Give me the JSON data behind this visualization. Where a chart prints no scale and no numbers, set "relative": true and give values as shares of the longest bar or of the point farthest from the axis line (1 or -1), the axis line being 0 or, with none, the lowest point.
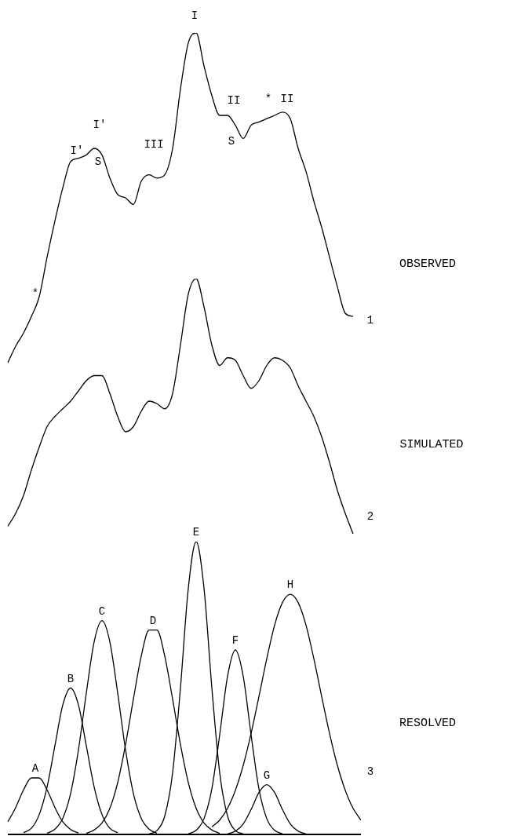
{
  "chart_data": [
    {
      "type": "line",
      "relative": true,
      "grid": false,
      "legend": false,
      "tick_labels": false,
      "marker": "none",
      "annotations": [
        "*",
        "I'",
        "I'",
        "S",
        "III",
        "I",
        "II",
        "S",
        "*",
        "II",
        "OBSERVED",
        "1"
      ],
      "categories": [
        null,
        null,
        null,
        null,
        null,
        null,
        null,
        null,
        null,
        null,
        null,
        null,
        null,
        null,
        null,
        null,
        null,
        null,
        null,
        null,
        null,
        null,
        null,
        null,
        null,
        null,
        null,
        null,
        null,
        null,
        null,
        null,
        null,
        null,
        null,
        null,
        null,
        null,
        null,
        null,
        null,
        null,
        null,
        null,
        null,
        null
      ],
      "series": [
        {
          "color": "#000000",
          "values": [
            0,
            0.05,
            0.09,
            0.14,
            0.2,
            0.32,
            0.43,
            0.53,
            0.61,
            0.62,
            0.63,
            0.65,
            0.63,
            0.56,
            0.51,
            0.5,
            0.48,
            0.55,
            0.57,
            0.56,
            0.57,
            0.65,
            0.83,
            0.97,
            1,
            0.9,
            0.81,
            0.75,
            0.75,
            0.72,
            0.68,
            0.72,
            0.73,
            0.74,
            0.75,
            0.76,
            0.74,
            0.65,
            0.58,
            0.49,
            0.41,
            0.32,
            0.23,
            0.15,
            0.14,
            null
          ]
        }
      ]
    },
    {
      "type": "line",
      "relative": true,
      "grid": false,
      "legend": false,
      "tick_labels": false,
      "marker": "none",
      "annotations": [
        "SIMULATED",
        "2"
      ],
      "categories": [
        null,
        null,
        null,
        null,
        null,
        null,
        null,
        null,
        null,
        null,
        null,
        null,
        null,
        null,
        null,
        null,
        null,
        null,
        null,
        null,
        null,
        null,
        null,
        null,
        null,
        null,
        null,
        null,
        null,
        null,
        null,
        null,
        null,
        null,
        null,
        null,
        null,
        null,
        null,
        null,
        null,
        null,
        null,
        null,
        null,
        null
      ],
      "series": [
        {
          "color": "#000000",
          "values": [
            0.03,
            0.08,
            0.15,
            0.25,
            0.34,
            0.42,
            0.46,
            0.49,
            0.52,
            0.56,
            0.6,
            0.62,
            0.62,
            0.55,
            0.46,
            0.4,
            0.42,
            0.48,
            0.52,
            0.51,
            0.49,
            0.55,
            0.74,
            0.94,
            1,
            0.89,
            0.74,
            0.66,
            0.69,
            0.68,
            0.62,
            0.57,
            0.6,
            0.66,
            0.69,
            0.68,
            0.65,
            0.58,
            0.52,
            0.46,
            0.38,
            0.28,
            0.17,
            0.08,
            0,
            null
          ]
        }
      ]
    },
    {
      "type": "line",
      "relative": true,
      "grid": false,
      "legend": false,
      "tick_labels": false,
      "marker": "none",
      "annotations": [
        "RESOLVED",
        "3"
      ],
      "ref_lines": [
        {
          "axis": "y",
          "value": 0,
          "label": null
        }
      ],
      "categories": [
        null,
        null,
        null,
        null,
        null,
        null,
        null,
        null,
        null,
        null,
        null,
        null,
        null,
        null,
        null,
        null,
        null,
        null,
        null,
        null,
        null,
        null,
        null,
        null,
        null,
        null,
        null,
        null,
        null,
        null,
        null,
        null,
        null,
        null,
        null,
        null,
        null,
        null,
        null,
        null,
        null,
        null,
        null,
        null,
        null,
        null
      ],
      "series": [
        {
          "name": "A",
          "color": "#000000",
          "values": [
            0.043,
            0.092,
            0.152,
            0.193,
            0.193,
            0.152,
            0.092,
            0.043,
            0.017,
            0.005,
            null,
            null,
            null,
            null,
            null,
            null,
            null,
            null,
            null,
            null,
            null,
            null,
            null,
            null,
            null,
            null,
            null,
            null,
            null,
            null,
            null,
            null,
            null,
            null,
            null,
            null,
            null,
            null,
            null,
            null,
            null,
            null,
            null,
            null,
            null,
            null
          ]
        },
        {
          "name": "B",
          "color": "#000000",
          "values": [
            null,
            null,
            0.006,
            0.021,
            0.068,
            0.162,
            0.303,
            0.442,
            0.5,
            0.442,
            0.303,
            0.162,
            0.068,
            0.021,
            0.006,
            null,
            null,
            null,
            null,
            null,
            null,
            null,
            null,
            null,
            null,
            null,
            null,
            null,
            null,
            null,
            null,
            null,
            null,
            null,
            null,
            null,
            null,
            null,
            null,
            null,
            null,
            null,
            null,
            null,
            null,
            null
          ]
        },
        {
          "name": "C",
          "color": "#000000",
          "values": [
            null,
            null,
            null,
            null,
            null,
            0.004,
            0.018,
            0.055,
            0.14,
            0.289,
            0.483,
            0.658,
            0.73,
            0.658,
            0.483,
            0.289,
            0.14,
            0.055,
            0.018,
            0.004,
            null,
            null,
            null,
            null,
            null,
            null,
            null,
            null,
            null,
            null,
            null,
            null,
            null,
            null,
            null,
            null,
            null,
            null,
            null,
            null,
            null,
            null,
            null,
            null,
            null,
            null
          ]
        },
        {
          "name": "D",
          "color": "#000000",
          "values": [
            null,
            null,
            null,
            null,
            null,
            null,
            null,
            null,
            null,
            null,
            0.004,
            0.015,
            0.039,
            0.089,
            0.177,
            0.307,
            0.462,
            0.609,
            0.698,
            0.698,
            0.609,
            0.462,
            0.307,
            0.177,
            0.089,
            0.039,
            0.015,
            0.004,
            null,
            null,
            null,
            null,
            null,
            null,
            null,
            null,
            null,
            null,
            null,
            null,
            null,
            null,
            null,
            null,
            null,
            null
          ]
        },
        {
          "name": "E",
          "color": "#000000",
          "values": [
            null,
            null,
            null,
            null,
            null,
            null,
            null,
            null,
            null,
            null,
            null,
            null,
            null,
            null,
            null,
            null,
            null,
            null,
            0.002,
            0.013,
            0.063,
            0.211,
            0.501,
            0.841,
            1,
            0.841,
            0.501,
            0.211,
            0.063,
            0.013,
            0.002,
            null,
            null,
            null,
            null,
            null,
            null,
            null,
            null,
            null,
            null,
            null,
            null,
            null,
            null,
            null
          ]
        },
        {
          "name": "F",
          "color": "#000000",
          "values": [
            null,
            null,
            null,
            null,
            null,
            null,
            null,
            null,
            null,
            null,
            null,
            null,
            null,
            null,
            null,
            null,
            null,
            null,
            null,
            null,
            null,
            null,
            null,
            0.002,
            0.014,
            0.054,
            0.156,
            0.34,
            0.54,
            0.63,
            0.54,
            0.34,
            0.156,
            0.054,
            0.014,
            0.002,
            null,
            null,
            null,
            null,
            null,
            null,
            null,
            null,
            null,
            null
          ]
        },
        {
          "name": "G",
          "color": "#000000",
          "values": [
            null,
            null,
            null,
            null,
            null,
            null,
            null,
            null,
            null,
            null,
            null,
            null,
            null,
            null,
            null,
            null,
            null,
            null,
            null,
            null,
            null,
            null,
            null,
            null,
            null,
            null,
            null,
            null,
            0.002,
            0.011,
            0.036,
            0.085,
            0.143,
            0.17,
            0.143,
            0.085,
            0.036,
            0.011,
            0.002,
            null,
            null,
            null,
            null,
            null,
            null,
            null
          ]
        },
        {
          "name": "H",
          "color": "#000000",
          "values": [
            null,
            null,
            null,
            null,
            null,
            null,
            null,
            null,
            null,
            null,
            null,
            null,
            null,
            null,
            null,
            null,
            null,
            null,
            null,
            null,
            null,
            null,
            null,
            null,
            null,
            null,
            0.026,
            0.049,
            0.089,
            0.151,
            0.236,
            0.345,
            0.471,
            0.6,
            0.715,
            0.792,
            0.82,
            0.792,
            0.715,
            0.6,
            0.471,
            0.345,
            0.236,
            0.151,
            0.089,
            0.049
          ]
        }
      ]
    }
  ]
}
